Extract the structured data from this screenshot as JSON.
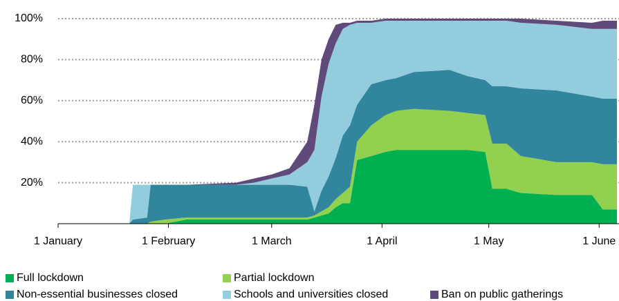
{
  "chart_data": {
    "type": "stacked_area",
    "x": [
      0,
      20,
      21,
      25,
      26,
      30,
      36,
      50,
      55,
      60,
      65,
      70,
      72,
      74,
      76,
      78,
      80,
      82,
      84,
      88,
      92,
      95,
      100,
      110,
      115,
      120,
      122,
      126,
      130,
      140,
      150,
      153,
      157
    ],
    "series": [
      {
        "name": "Full lockdown",
        "color": "#00b050",
        "values": [
          0,
          0,
          0,
          0,
          0,
          0,
          2,
          2,
          2,
          2,
          2,
          2,
          3,
          4,
          5,
          8,
          10,
          10,
          31,
          33,
          35,
          36,
          36,
          36,
          36,
          35,
          17,
          17,
          15,
          14,
          14,
          7,
          7
        ]
      },
      {
        "name": "Partial lockdown",
        "color": "#92d050",
        "values": [
          0,
          0,
          0,
          0,
          1,
          2,
          1,
          1,
          1,
          1,
          1,
          1,
          1,
          2,
          3,
          4,
          5,
          8,
          9,
          15,
          18,
          19,
          20,
          19,
          18,
          18,
          22,
          22,
          18,
          16,
          16,
          22,
          22
        ]
      },
      {
        "name": "Non-essential businesses closed",
        "color": "#31859c",
        "values": [
          0,
          0,
          2,
          3,
          18,
          17,
          16,
          16,
          16,
          16,
          16,
          15,
          2,
          10,
          15,
          20,
          28,
          30,
          18,
          20,
          17,
          16,
          18,
          20,
          18,
          17,
          28,
          28,
          33,
          35,
          32,
          32,
          32
        ]
      },
      {
        "name": "Schools and universities closed",
        "color": "#93cddd",
        "values": [
          0,
          0,
          17,
          16,
          0,
          0,
          0,
          0,
          1,
          3,
          5,
          12,
          30,
          46,
          55,
          56,
          52,
          49,
          40,
          30,
          29,
          28,
          25,
          24,
          27,
          29,
          32,
          32,
          32,
          32,
          33,
          34,
          34
        ]
      },
      {
        "name": "Ban on public gatherings",
        "color": "#604a7b",
        "values": [
          0,
          0,
          0,
          0,
          0,
          0,
          0,
          1,
          2,
          2,
          3,
          10,
          22,
          18,
          12,
          9,
          3,
          1,
          1,
          1,
          1,
          1,
          1,
          1,
          1,
          1,
          1,
          1,
          2,
          2,
          3,
          4,
          4
        ]
      }
    ],
    "xlim": [
      0,
      157
    ],
    "xticks": [
      {
        "value": 0,
        "label": "1 January"
      },
      {
        "value": 31,
        "label": "1 February"
      },
      {
        "value": 60,
        "label": "1 March"
      },
      {
        "value": 91,
        "label": "1 April"
      },
      {
        "value": 121,
        "label": "1 May"
      },
      {
        "value": 152,
        "label": "1 June"
      }
    ],
    "ylim": [
      0,
      100
    ],
    "yticks": [
      {
        "value": 20,
        "label": "20%"
      },
      {
        "value": 40,
        "label": "40%"
      },
      {
        "value": 60,
        "label": "60%"
      },
      {
        "value": 80,
        "label": "80%"
      },
      {
        "value": 100,
        "label": "100%"
      }
    ],
    "grid": true,
    "legend": "bottom"
  }
}
